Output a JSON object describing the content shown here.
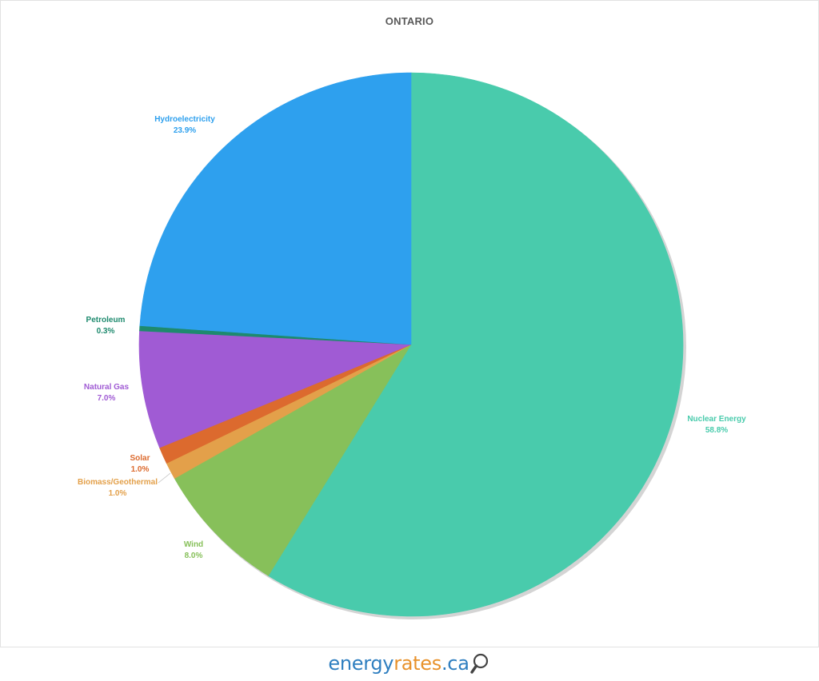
{
  "chart_data": {
    "type": "pie",
    "title": "ONTARIO",
    "slices": [
      {
        "label": "Nuclear Energy",
        "value": 58.8,
        "display": "58.8%",
        "color": "#49cbac"
      },
      {
        "label": "Wind",
        "value": 8.0,
        "display": "8.0%",
        "color": "#87c05a"
      },
      {
        "label": "Biomass/Geothermal",
        "value": 1.0,
        "display": "1.0%",
        "color": "#e3a04a"
      },
      {
        "label": "Solar",
        "value": 1.0,
        "display": "1.0%",
        "color": "#dc6a2e"
      },
      {
        "label": "Natural Gas",
        "value": 7.0,
        "display": "7.0%",
        "color": "#a05bd4"
      },
      {
        "label": "Petroleum",
        "value": 0.3,
        "display": "0.3%",
        "color": "#1e8a6e"
      },
      {
        "label": "Hydroelectricity",
        "value": 23.9,
        "display": "23.9%",
        "color": "#2ea0ee"
      }
    ],
    "start": "12 o'clock",
    "direction": "clockwise"
  },
  "logo": {
    "part1": "energy",
    "part2": "rates",
    "part3": ".ca",
    "icon": "magnifier-icon"
  }
}
